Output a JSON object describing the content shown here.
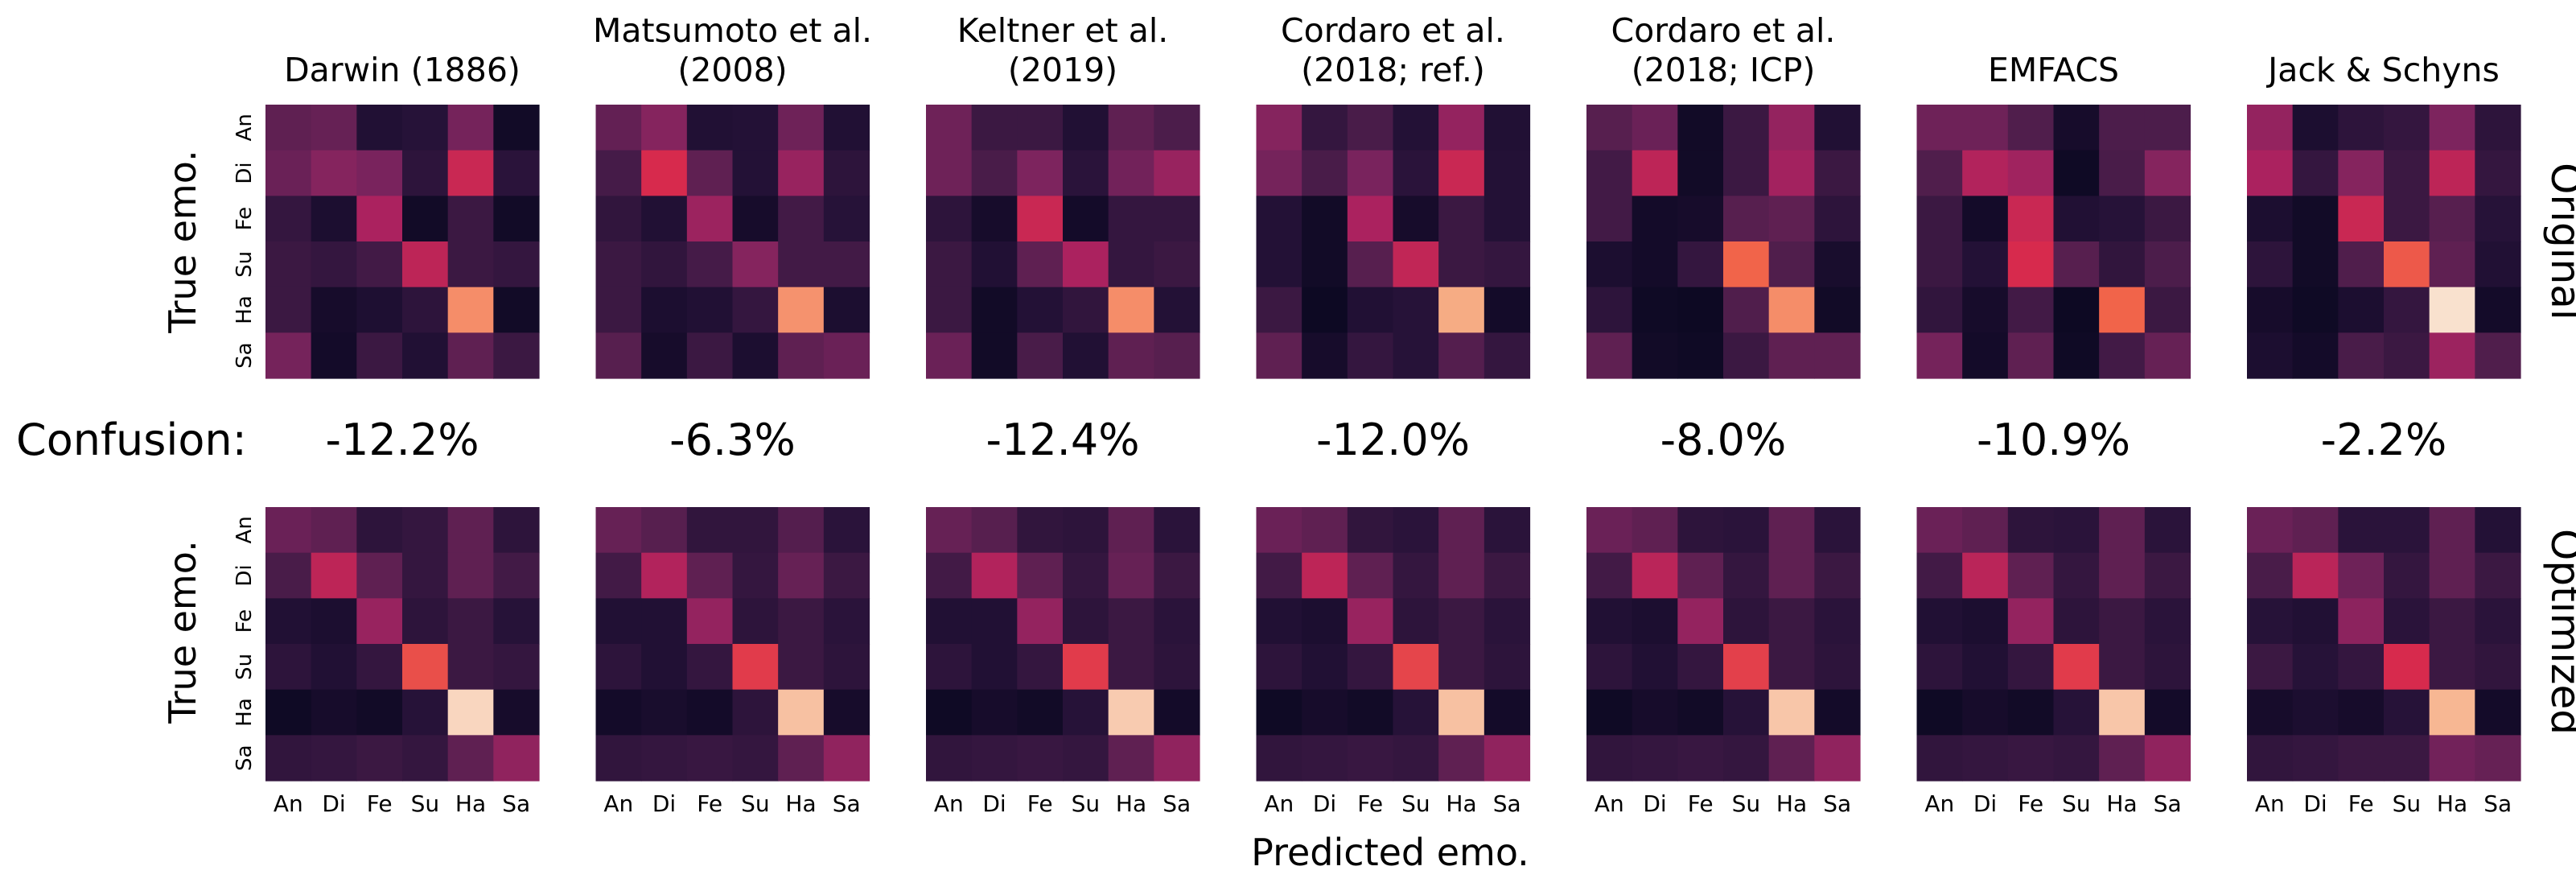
{
  "chart_data": {
    "type": "heatmap",
    "title": "",
    "xlabel": "Predicted emo.",
    "ylabel": "True emo.",
    "emotions": [
      "An",
      "Di",
      "Fe",
      "Su",
      "Ha",
      "Sa"
    ],
    "row_labels": [
      "Original",
      "Optimized"
    ],
    "confusion_label": "Confusion:",
    "colormap": "rocket",
    "value_range": [
      0,
      1
    ],
    "panels": [
      {
        "title": "Darwin (1886)",
        "confusion": "-12.2%",
        "original": [
          [
            0.3,
            0.32,
            0.12,
            0.14,
            0.36,
            0.06
          ],
          [
            0.33,
            0.4,
            0.37,
            0.16,
            0.58,
            0.15
          ],
          [
            0.18,
            0.1,
            0.5,
            0.06,
            0.2,
            0.06
          ],
          [
            0.2,
            0.18,
            0.22,
            0.55,
            0.2,
            0.18
          ],
          [
            0.2,
            0.08,
            0.11,
            0.16,
            0.82,
            0.06
          ],
          [
            0.36,
            0.07,
            0.2,
            0.12,
            0.3,
            0.2
          ]
        ],
        "optimized": [
          [
            0.33,
            0.3,
            0.16,
            0.18,
            0.3,
            0.16
          ],
          [
            0.24,
            0.55,
            0.3,
            0.18,
            0.3,
            0.22
          ],
          [
            0.12,
            0.1,
            0.45,
            0.16,
            0.2,
            0.14
          ],
          [
            0.16,
            0.12,
            0.18,
            0.7,
            0.2,
            0.18
          ],
          [
            0.05,
            0.08,
            0.06,
            0.14,
            0.96,
            0.08
          ],
          [
            0.17,
            0.18,
            0.2,
            0.18,
            0.3,
            0.43
          ]
        ]
      },
      {
        "title": "Matsumoto et al. (2008)",
        "confusion": "-6.3%",
        "original": [
          [
            0.31,
            0.4,
            0.12,
            0.13,
            0.34,
            0.12
          ],
          [
            0.23,
            0.62,
            0.3,
            0.13,
            0.45,
            0.16
          ],
          [
            0.17,
            0.12,
            0.46,
            0.08,
            0.22,
            0.14
          ],
          [
            0.2,
            0.17,
            0.23,
            0.4,
            0.22,
            0.22
          ],
          [
            0.2,
            0.1,
            0.12,
            0.18,
            0.83,
            0.1
          ],
          [
            0.28,
            0.08,
            0.2,
            0.1,
            0.3,
            0.33
          ]
        ],
        "optimized": [
          [
            0.32,
            0.28,
            0.17,
            0.17,
            0.27,
            0.15
          ],
          [
            0.22,
            0.52,
            0.3,
            0.18,
            0.32,
            0.2
          ],
          [
            0.12,
            0.12,
            0.44,
            0.16,
            0.2,
            0.15
          ],
          [
            0.16,
            0.12,
            0.18,
            0.66,
            0.2,
            0.16
          ],
          [
            0.07,
            0.09,
            0.07,
            0.16,
            0.92,
            0.08
          ],
          [
            0.17,
            0.18,
            0.19,
            0.18,
            0.3,
            0.43
          ]
        ]
      },
      {
        "title": "Keltner et al. (2019)",
        "confusion": "-12.4%",
        "original": [
          [
            0.34,
            0.2,
            0.2,
            0.12,
            0.3,
            0.25
          ],
          [
            0.34,
            0.24,
            0.38,
            0.15,
            0.35,
            0.45
          ],
          [
            0.16,
            0.08,
            0.58,
            0.07,
            0.18,
            0.18
          ],
          [
            0.2,
            0.12,
            0.3,
            0.5,
            0.18,
            0.2
          ],
          [
            0.2,
            0.06,
            0.13,
            0.17,
            0.82,
            0.13
          ],
          [
            0.33,
            0.06,
            0.24,
            0.12,
            0.3,
            0.28
          ]
        ],
        "optimized": [
          [
            0.32,
            0.28,
            0.17,
            0.16,
            0.3,
            0.15
          ],
          [
            0.22,
            0.52,
            0.3,
            0.18,
            0.32,
            0.2
          ],
          [
            0.12,
            0.12,
            0.44,
            0.16,
            0.2,
            0.15
          ],
          [
            0.16,
            0.12,
            0.18,
            0.66,
            0.2,
            0.16
          ],
          [
            0.05,
            0.08,
            0.06,
            0.14,
            0.94,
            0.07
          ],
          [
            0.17,
            0.18,
            0.19,
            0.18,
            0.3,
            0.43
          ]
        ]
      },
      {
        "title": "Cordaro et al. (2018; ref.)",
        "confusion": "-12.0%",
        "original": [
          [
            0.4,
            0.18,
            0.24,
            0.13,
            0.44,
            0.12
          ],
          [
            0.36,
            0.24,
            0.37,
            0.15,
            0.58,
            0.13
          ],
          [
            0.13,
            0.06,
            0.5,
            0.08,
            0.2,
            0.13
          ],
          [
            0.13,
            0.06,
            0.28,
            0.56,
            0.2,
            0.18
          ],
          [
            0.2,
            0.04,
            0.12,
            0.14,
            0.88,
            0.07
          ],
          [
            0.3,
            0.08,
            0.18,
            0.14,
            0.27,
            0.18
          ]
        ],
        "optimized": [
          [
            0.33,
            0.3,
            0.17,
            0.15,
            0.3,
            0.15
          ],
          [
            0.22,
            0.55,
            0.3,
            0.18,
            0.3,
            0.2
          ],
          [
            0.12,
            0.1,
            0.45,
            0.16,
            0.2,
            0.15
          ],
          [
            0.16,
            0.12,
            0.18,
            0.68,
            0.2,
            0.16
          ],
          [
            0.05,
            0.08,
            0.06,
            0.14,
            0.92,
            0.07
          ],
          [
            0.17,
            0.18,
            0.19,
            0.18,
            0.3,
            0.43
          ]
        ]
      },
      {
        "title": "Cordaro et al. (2018; ICP)",
        "confusion": "-8.0%",
        "original": [
          [
            0.28,
            0.33,
            0.06,
            0.2,
            0.44,
            0.12
          ],
          [
            0.22,
            0.55,
            0.06,
            0.2,
            0.48,
            0.2
          ],
          [
            0.22,
            0.07,
            0.08,
            0.28,
            0.3,
            0.16
          ],
          [
            0.1,
            0.07,
            0.18,
            0.74,
            0.26,
            0.09
          ],
          [
            0.16,
            0.05,
            0.04,
            0.26,
            0.82,
            0.06
          ],
          [
            0.3,
            0.06,
            0.05,
            0.2,
            0.3,
            0.3
          ]
        ],
        "optimized": [
          [
            0.33,
            0.3,
            0.16,
            0.15,
            0.3,
            0.15
          ],
          [
            0.22,
            0.54,
            0.3,
            0.18,
            0.3,
            0.2
          ],
          [
            0.12,
            0.1,
            0.44,
            0.16,
            0.2,
            0.15
          ],
          [
            0.16,
            0.12,
            0.18,
            0.67,
            0.2,
            0.16
          ],
          [
            0.05,
            0.08,
            0.06,
            0.14,
            0.93,
            0.07
          ],
          [
            0.17,
            0.18,
            0.19,
            0.18,
            0.3,
            0.43
          ]
        ]
      },
      {
        "title": "EMFACS",
        "confusion": "-10.9%",
        "original": [
          [
            0.34,
            0.34,
            0.26,
            0.08,
            0.25,
            0.25
          ],
          [
            0.26,
            0.52,
            0.47,
            0.05,
            0.24,
            0.4
          ],
          [
            0.2,
            0.07,
            0.58,
            0.12,
            0.14,
            0.2
          ],
          [
            0.2,
            0.13,
            0.62,
            0.28,
            0.17,
            0.25
          ],
          [
            0.17,
            0.08,
            0.22,
            0.04,
            0.74,
            0.2
          ],
          [
            0.36,
            0.07,
            0.3,
            0.05,
            0.22,
            0.32
          ]
        ],
        "optimized": [
          [
            0.33,
            0.3,
            0.16,
            0.15,
            0.3,
            0.15
          ],
          [
            0.22,
            0.54,
            0.3,
            0.18,
            0.3,
            0.2
          ],
          [
            0.12,
            0.1,
            0.44,
            0.16,
            0.2,
            0.15
          ],
          [
            0.16,
            0.12,
            0.18,
            0.66,
            0.2,
            0.16
          ],
          [
            0.05,
            0.08,
            0.06,
            0.14,
            0.93,
            0.07
          ],
          [
            0.17,
            0.18,
            0.19,
            0.18,
            0.3,
            0.43
          ]
        ]
      },
      {
        "title": "Jack & Schyns",
        "confusion": "-2.2%",
        "original": [
          [
            0.44,
            0.1,
            0.16,
            0.18,
            0.38,
            0.16
          ],
          [
            0.5,
            0.18,
            0.4,
            0.2,
            0.55,
            0.18
          ],
          [
            0.1,
            0.06,
            0.58,
            0.2,
            0.28,
            0.14
          ],
          [
            0.16,
            0.06,
            0.26,
            0.72,
            0.3,
            0.12
          ],
          [
            0.08,
            0.05,
            0.1,
            0.18,
            0.98,
            0.07
          ],
          [
            0.1,
            0.07,
            0.24,
            0.2,
            0.46,
            0.26
          ]
        ],
        "optimized": [
          [
            0.33,
            0.3,
            0.15,
            0.15,
            0.3,
            0.13
          ],
          [
            0.24,
            0.54,
            0.34,
            0.18,
            0.3,
            0.2
          ],
          [
            0.14,
            0.12,
            0.42,
            0.15,
            0.2,
            0.15
          ],
          [
            0.2,
            0.14,
            0.18,
            0.62,
            0.2,
            0.17
          ],
          [
            0.08,
            0.1,
            0.08,
            0.14,
            0.9,
            0.07
          ],
          [
            0.17,
            0.18,
            0.2,
            0.2,
            0.35,
            0.32
          ]
        ]
      }
    ]
  }
}
